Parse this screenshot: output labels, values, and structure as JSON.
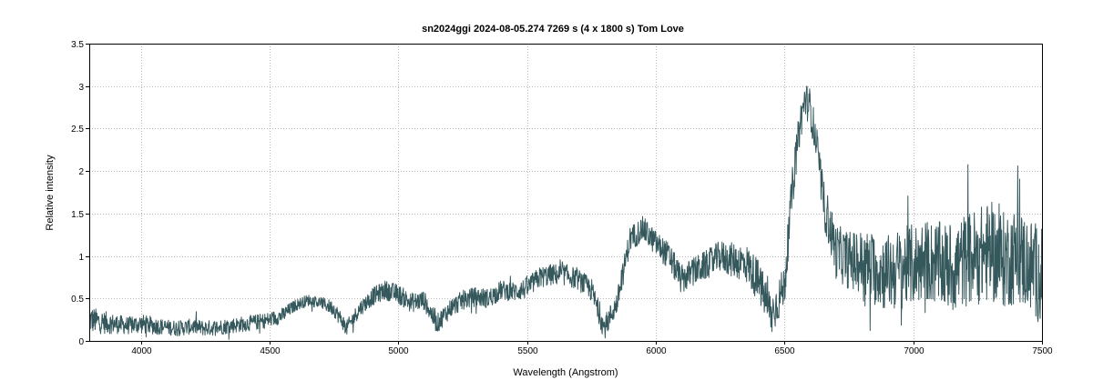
{
  "chart_data": {
    "type": "line",
    "title": "sn2024ggi    2024-08-05.274   7269 s (4 x 1800 s)   Tom Love",
    "xlabel": "Wavelength (Angstrom)",
    "ylabel": "Relative intensity",
    "xlim": [
      3800,
      7500
    ],
    "ylim": [
      0,
      3.5
    ],
    "xticks": [
      4000,
      4500,
      5000,
      5500,
      6000,
      6500,
      7000,
      7500
    ],
    "yticks": [
      0,
      0.5,
      1,
      1.5,
      2,
      2.5,
      3,
      3.5
    ],
    "ytick_labels": [
      "0",
      "0.5",
      "1",
      "1.5",
      "2",
      "2.5",
      "3",
      "3.5"
    ],
    "grid": true,
    "line_color": "#35585c",
    "series": [
      {
        "x": [
          3800,
          3850,
          3900,
          3950,
          4000,
          4050,
          4100,
          4150,
          4200,
          4250,
          4300,
          4350,
          4400,
          4450,
          4500,
          4550,
          4600,
          4650,
          4700,
          4750,
          4800,
          4850,
          4900,
          4950,
          5000,
          5050,
          5100,
          5150,
          5200,
          5250,
          5300,
          5350,
          5400,
          5450,
          5500,
          5550,
          5600,
          5650,
          5700,
          5750,
          5800,
          5850,
          5900,
          5950,
          6000,
          6050,
          6100,
          6150,
          6200,
          6250,
          6300,
          6350,
          6400,
          6450,
          6500,
          6530,
          6560,
          6580,
          6600,
          6630,
          6650,
          6700,
          6750,
          6800,
          6850,
          6900,
          6950,
          7000,
          7050,
          7100,
          7150,
          7200,
          7250,
          7300,
          7350,
          7400,
          7450,
          7500
        ],
        "y": [
          0.25,
          0.22,
          0.2,
          0.18,
          0.2,
          0.18,
          0.16,
          0.15,
          0.17,
          0.15,
          0.16,
          0.18,
          0.2,
          0.22,
          0.25,
          0.3,
          0.42,
          0.48,
          0.45,
          0.38,
          0.15,
          0.38,
          0.52,
          0.6,
          0.55,
          0.45,
          0.48,
          0.2,
          0.38,
          0.48,
          0.52,
          0.5,
          0.6,
          0.58,
          0.62,
          0.75,
          0.78,
          0.78,
          0.72,
          0.6,
          0.15,
          0.45,
          1.2,
          1.32,
          1.15,
          1.0,
          0.72,
          0.82,
          0.9,
          1.0,
          0.95,
          0.92,
          0.7,
          0.3,
          0.65,
          1.8,
          2.55,
          2.85,
          2.75,
          2.2,
          1.65,
          1.05,
          0.95,
          0.92,
          0.85,
          0.8,
          0.85,
          0.9,
          0.95,
          0.9,
          0.85,
          0.95,
          1.0,
          1.05,
          0.95,
          1.0,
          0.9,
          0.75
        ],
        "noise": [
          0.14,
          0.12,
          0.1,
          0.09,
          0.1,
          0.09,
          0.08,
          0.08,
          0.08,
          0.08,
          0.08,
          0.08,
          0.08,
          0.08,
          0.08,
          0.08,
          0.06,
          0.06,
          0.06,
          0.08,
          0.08,
          0.08,
          0.09,
          0.1,
          0.1,
          0.1,
          0.1,
          0.1,
          0.1,
          0.1,
          0.1,
          0.1,
          0.1,
          0.1,
          0.11,
          0.11,
          0.11,
          0.11,
          0.11,
          0.12,
          0.12,
          0.12,
          0.13,
          0.13,
          0.13,
          0.14,
          0.15,
          0.15,
          0.15,
          0.16,
          0.18,
          0.2,
          0.22,
          0.22,
          0.22,
          0.2,
          0.2,
          0.18,
          0.2,
          0.2,
          0.24,
          0.28,
          0.3,
          0.34,
          0.38,
          0.4,
          0.42,
          0.42,
          0.42,
          0.44,
          0.46,
          0.48,
          0.5,
          0.52,
          0.5,
          0.5,
          0.5,
          0.5
        ]
      }
    ]
  }
}
